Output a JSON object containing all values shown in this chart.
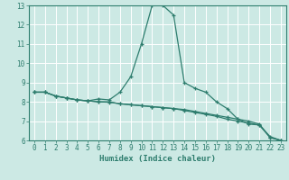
{
  "xlabel": "Humidex (Indice chaleur)",
  "bg_color": "#cce9e4",
  "line_color": "#2e7d6e",
  "grid_color": "#ffffff",
  "xlim": [
    -0.5,
    23.5
  ],
  "ylim": [
    6,
    13
  ],
  "xticks": [
    0,
    1,
    2,
    3,
    4,
    5,
    6,
    7,
    8,
    9,
    10,
    11,
    12,
    13,
    14,
    15,
    16,
    17,
    18,
    19,
    20,
    21,
    22,
    23
  ],
  "yticks": [
    6,
    7,
    8,
    9,
    10,
    11,
    12,
    13
  ],
  "line1_x": [
    0,
    1,
    2,
    3,
    4,
    5,
    6,
    7,
    8,
    9,
    10,
    11,
    12,
    13,
    14,
    15,
    16,
    17,
    18,
    19,
    20,
    21,
    22,
    23
  ],
  "line1_y": [
    8.5,
    8.5,
    8.3,
    8.2,
    8.1,
    8.05,
    8.0,
    8.0,
    7.9,
    7.85,
    7.8,
    7.75,
    7.7,
    7.65,
    7.6,
    7.5,
    7.4,
    7.3,
    7.2,
    7.1,
    7.0,
    6.85,
    6.15,
    6.0
  ],
  "line2_x": [
    0,
    1,
    2,
    3,
    4,
    5,
    6,
    7,
    8,
    9,
    10,
    11,
    12,
    13,
    14,
    15,
    16,
    17,
    18,
    19,
    20,
    21,
    22,
    23
  ],
  "line2_y": [
    8.5,
    8.5,
    8.3,
    8.2,
    8.1,
    8.05,
    8.15,
    8.1,
    8.5,
    9.3,
    11.0,
    13.0,
    13.0,
    12.5,
    9.0,
    8.7,
    8.5,
    8.0,
    7.65,
    7.1,
    6.85,
    6.8,
    6.2,
    6.0
  ],
  "line3_x": [
    0,
    1,
    2,
    3,
    4,
    5,
    6,
    7,
    8,
    9,
    10,
    11,
    12,
    13,
    14,
    15,
    16,
    17,
    18,
    19,
    20,
    21,
    22,
    23
  ],
  "line3_y": [
    8.5,
    8.5,
    8.3,
    8.2,
    8.1,
    8.05,
    8.0,
    7.98,
    7.9,
    7.85,
    7.8,
    7.75,
    7.7,
    7.65,
    7.55,
    7.45,
    7.35,
    7.25,
    7.1,
    7.0,
    6.9,
    6.8,
    6.15,
    6.0
  ]
}
